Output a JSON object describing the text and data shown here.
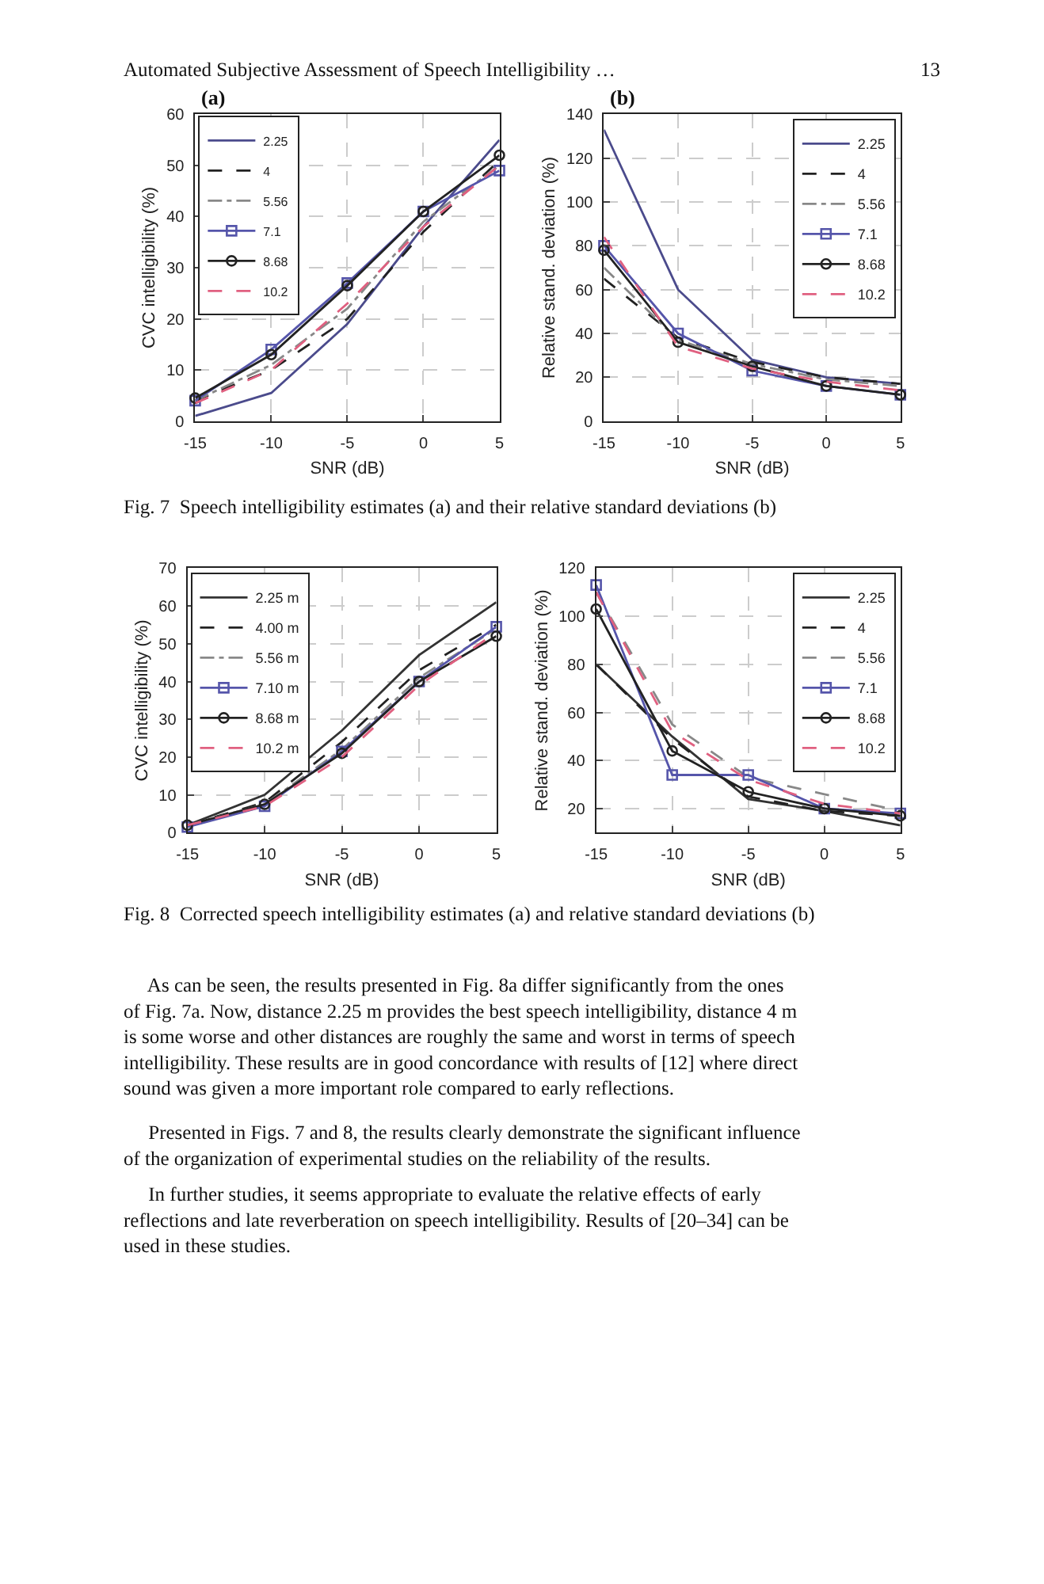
{
  "chart_data": [
    {
      "type": "line",
      "title": "(a)",
      "xlabel": "SNR (dB)",
      "ylabel": "CVC intelligibility (%)",
      "x": [
        -15,
        -10,
        -5,
        0,
        5
      ],
      "xlim": [
        -15,
        5
      ],
      "xticks": [
        -15,
        -10,
        -5,
        0,
        5
      ],
      "ylim": [
        0,
        60
      ],
      "yticks": [
        0,
        10,
        20,
        30,
        40,
        50,
        60
      ],
      "grid": true,
      "legend": "top left",
      "annotations": [
        "Automated Subjective Assessment of Speech Intelligibility …",
        "13"
      ],
      "series": [
        {
          "name": "2.25",
          "color": "#4b4b8c",
          "marker": "none",
          "line_style": "solid",
          "values": [
            1,
            5.5,
            19,
            38,
            55
          ]
        },
        {
          "name": "4",
          "color": "#222222",
          "marker": "none",
          "line_style": "dashed",
          "values": [
            4,
            10,
            20,
            37,
            51
          ]
        },
        {
          "name": "5.56",
          "color": "#888888",
          "marker": "none",
          "line_style": "dashdot",
          "values": [
            4,
            11,
            22,
            39,
            50
          ]
        },
        {
          "name": "7.1",
          "color": "#5555aa",
          "marker": "square",
          "line_style": "solid",
          "values": [
            4,
            14,
            27,
            41,
            49
          ]
        },
        {
          "name": "8.68",
          "color": "#222222",
          "marker": "circle",
          "line_style": "solid",
          "values": [
            4.5,
            13,
            26.5,
            41,
            52
          ]
        },
        {
          "name": "10.2",
          "color": "#e06080",
          "marker": "none",
          "line_style": "dashed",
          "values": [
            3.5,
            10,
            23,
            38,
            50
          ]
        }
      ]
    },
    {
      "type": "line",
      "title": "(b)",
      "xlabel": "SNR (dB)",
      "ylabel": "Relative stand. deviation (%)",
      "x": [
        -15,
        -10,
        -5,
        0,
        5
      ],
      "xlim": [
        -15,
        5
      ],
      "xticks": [
        -15,
        -10,
        -5,
        0,
        5
      ],
      "ylim": [
        0,
        140
      ],
      "yticks": [
        0,
        20,
        40,
        60,
        80,
        100,
        120,
        140
      ],
      "grid": true,
      "legend": "top right",
      "annotations": [
        "Fig. 7  Speech intelligibility estimates (a) and their relative standard deviations (b)"
      ],
      "series": [
        {
          "name": "2.25",
          "color": "#4b4b8c",
          "marker": "none",
          "line_style": "solid",
          "values": [
            133,
            60,
            28,
            20,
            17
          ]
        },
        {
          "name": "4",
          "color": "#222222",
          "marker": "none",
          "line_style": "dashed",
          "values": [
            65,
            38,
            27,
            20,
            17
          ]
        },
        {
          "name": "5.56",
          "color": "#888888",
          "marker": "none",
          "line_style": "dashdot",
          "values": [
            70,
            37,
            26,
            19,
            16
          ]
        },
        {
          "name": "7.1",
          "color": "#5555aa",
          "marker": "square",
          "line_style": "solid",
          "values": [
            80,
            40,
            23,
            16,
            12
          ]
        },
        {
          "name": "8.68",
          "color": "#222222",
          "marker": "circle",
          "line_style": "solid",
          "values": [
            78,
            36,
            25,
            16,
            12
          ]
        },
        {
          "name": "10.2",
          "color": "#e06080",
          "marker": "none",
          "line_style": "dashed",
          "values": [
            84,
            34,
            24,
            18,
            14
          ]
        }
      ]
    },
    {
      "type": "line",
      "xlabel": "SNR (dB)",
      "ylabel": "CVC intelligibility (%)",
      "x": [
        -15,
        -10,
        -5,
        0,
        5
      ],
      "xlim": [
        -15,
        5
      ],
      "xticks": [
        -15,
        -10,
        -5,
        0,
        5
      ],
      "ylim": [
        0,
        70
      ],
      "yticks": [
        0,
        10,
        20,
        30,
        40,
        50,
        60,
        70
      ],
      "grid": true,
      "legend": "top left",
      "series": [
        {
          "name": "2.25 m",
          "color": "#333333",
          "marker": "none",
          "line_style": "solid",
          "values": [
            2,
            10,
            27,
            47,
            61
          ]
        },
        {
          "name": "4.00 m",
          "color": "#222222",
          "marker": "none",
          "line_style": "dashed",
          "values": [
            2,
            8,
            24,
            43,
            55
          ]
        },
        {
          "name": "5.56 m",
          "color": "#888888",
          "marker": "none",
          "line_style": "dashdot",
          "values": [
            2,
            7.5,
            22,
            41,
            54
          ]
        },
        {
          "name": "7.10 m",
          "color": "#5555aa",
          "marker": "square",
          "line_style": "solid",
          "values": [
            1.5,
            7,
            21.5,
            40,
            54.5
          ]
        },
        {
          "name": "8.68 m",
          "color": "#222222",
          "marker": "circle",
          "line_style": "solid",
          "values": [
            2,
            7.5,
            21,
            40,
            52
          ]
        },
        {
          "name": "10.2 m",
          "color": "#e06080",
          "marker": "none",
          "line_style": "dashed",
          "values": [
            2,
            7,
            20,
            39,
            53
          ]
        }
      ]
    },
    {
      "type": "line",
      "xlabel": "SNR (dB)",
      "ylabel": "Relative stand. deviation (%)",
      "x": [
        -15,
        -10,
        -5,
        0,
        5
      ],
      "xlim": [
        -15,
        5
      ],
      "xticks": [
        -15,
        -10,
        -5,
        0,
        5
      ],
      "ylim": [
        10,
        120
      ],
      "yticks": [
        20,
        40,
        60,
        80,
        100,
        120
      ],
      "grid": true,
      "legend": "top right",
      "annotations": [
        "Fig. 8  Corrected speech intelligibility estimates (a) and relative standard deviations (b)",
        "     As can be seen, the results presented in Fig. 8a differ significantly from the ones\nof Fig. 7a. Now, distance 2.25 m provides the best speech intelligibility, distance 4 m\nis some worse and other distances are roughly the same and worst in terms of speech\nintelligibility. These results are in good concordance with results of [12] where direct\nsound was given a more important role compared to early reflections.",
        "     Presented in Figs. 7 and 8, the results clearly demonstrate the significant influence\nof the organization of experimental studies on the reliability of the results.",
        "     In further studies, it seems appropriate to evaluate the relative effects of early\nreflections and late reverberation on speech intelligibility. Results of [20–34] can be\nused in these studies."
      ],
      "series": [
        {
          "name": "2.25",
          "color": "#333333",
          "marker": "none",
          "line_style": "solid",
          "values": [
            80,
            50,
            24,
            19,
            13
          ]
        },
        {
          "name": "4",
          "color": "#222222",
          "marker": "none",
          "line_style": "dashed",
          "values": [
            80,
            49,
            25,
            19,
            17
          ]
        },
        {
          "name": "5.56",
          "color": "#888888",
          "marker": "none",
          "line_style": "dashed",
          "values": [
            110,
            55,
            33,
            26,
            19
          ]
        },
        {
          "name": "7.1",
          "color": "#5555aa",
          "marker": "square",
          "line_style": "solid",
          "values": [
            113,
            34,
            34,
            20,
            18
          ]
        },
        {
          "name": "8.68",
          "color": "#222222",
          "marker": "circle",
          "line_style": "solid",
          "values": [
            103,
            44,
            27,
            20,
            17
          ]
        },
        {
          "name": "10.2",
          "color": "#e06080",
          "marker": "none",
          "line_style": "dashed",
          "values": [
            110,
            52,
            32,
            22,
            18
          ]
        }
      ]
    }
  ]
}
